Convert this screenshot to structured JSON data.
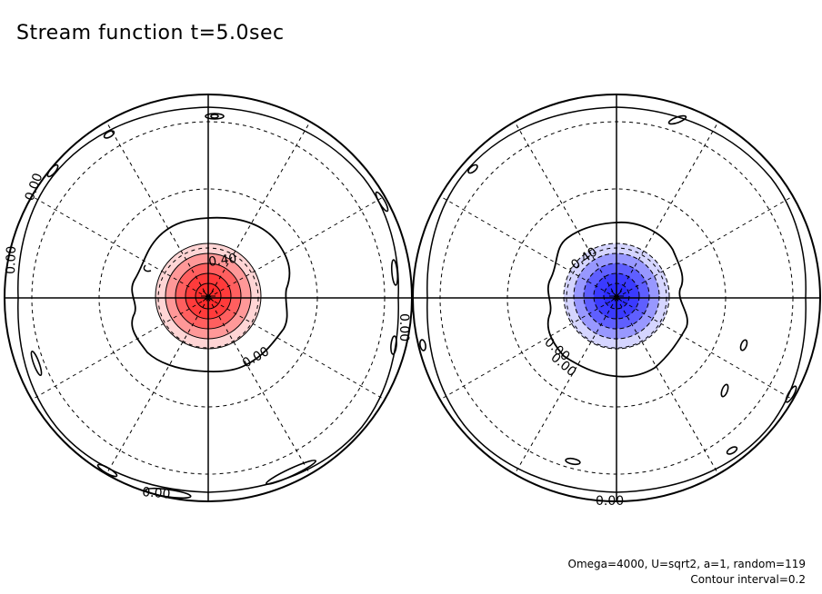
{
  "title": "Stream function t=5.0sec",
  "footer": {
    "params": "Omega=4000, U=sqrt2, a=1, random=119",
    "contour_interval": "Contour interval=0.2"
  },
  "colors": {
    "positive": "#ff2b2b",
    "negative": "#2b2bff",
    "line": "#000000"
  },
  "chart_data": [
    {
      "type": "heatmap",
      "projection": "polar-stereographic",
      "hemisphere": "north",
      "contour_interval": 0.2,
      "center_value_sign": "positive",
      "shaded_levels": [
        0.2,
        0.4,
        0.6,
        0.8,
        1.0
      ],
      "contour_labels": [
        "0.40",
        "0.00",
        "0.00",
        "0.00",
        "0.00",
        "0.00"
      ],
      "latitude_circles": 3,
      "meridians": 12
    },
    {
      "type": "heatmap",
      "projection": "polar-stereographic",
      "hemisphere": "south",
      "contour_interval": 0.2,
      "center_value_sign": "negative",
      "shaded_levels": [
        -0.2,
        -0.4,
        -0.6,
        -0.8,
        -1.0
      ],
      "contour_labels": [
        "-0.40",
        "0.00",
        "0.00",
        "0.00"
      ],
      "latitude_circles": 3,
      "meridians": 12
    }
  ]
}
